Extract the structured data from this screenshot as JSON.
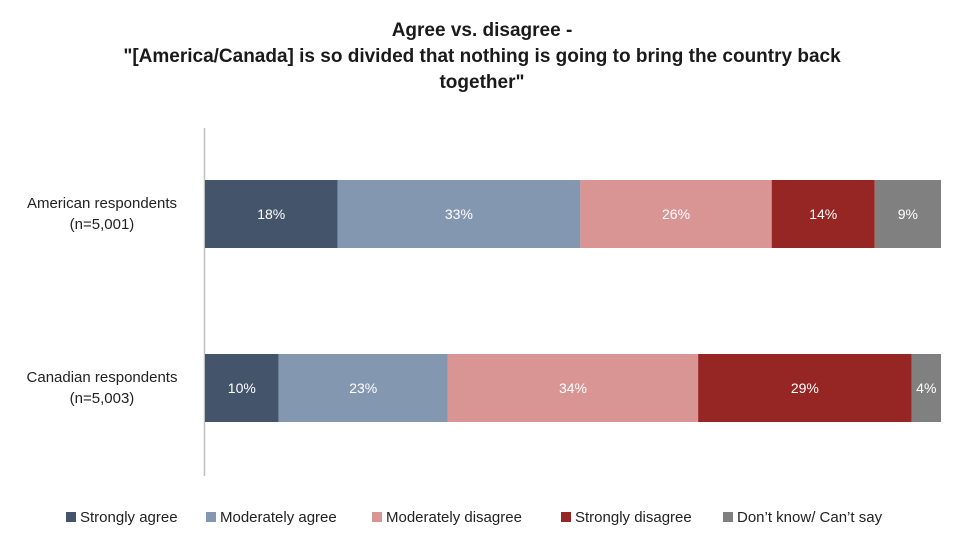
{
  "chart_data": {
    "type": "bar",
    "orientation": "horizontal",
    "stacked": true,
    "title": [
      "Agree vs. disagree -",
      "\"[America/Canada] is so divided that nothing is going to bring the country back",
      "together\""
    ],
    "categories": [
      [
        "American respondents",
        "(n=5,001)"
      ],
      [
        "Canadian respondents",
        "(n=5,003)"
      ]
    ],
    "series": [
      {
        "name": "Strongly agree",
        "color": "#44546a",
        "values": [
          18,
          10
        ],
        "labels": [
          "18%",
          "10%"
        ]
      },
      {
        "name": "Moderately agree",
        "color": "#8497b0",
        "values": [
          33,
          23
        ],
        "labels": [
          "33%",
          "23%"
        ]
      },
      {
        "name": "Moderately disagree",
        "color": "#d99594",
        "values": [
          26,
          34
        ],
        "labels": [
          "26%",
          "34%"
        ]
      },
      {
        "name": "Strongly disagree",
        "color": "#952623",
        "values": [
          14,
          29
        ],
        "labels": [
          "14%",
          "29%"
        ]
      },
      {
        "name": "Don’t know/ Can’t say",
        "color": "#808080",
        "values": [
          9,
          4
        ],
        "labels": [
          "9%",
          "4%"
        ]
      }
    ],
    "xlim": [
      0,
      100
    ],
    "grid": false,
    "legend_position": "bottom"
  }
}
